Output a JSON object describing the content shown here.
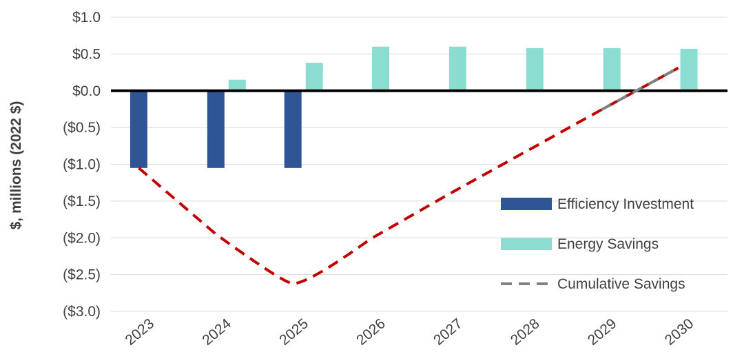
{
  "chart_data": {
    "type": "bar",
    "categories": [
      "2023",
      "2024",
      "2025",
      "2026",
      "2027",
      "2028",
      "2029",
      "2030"
    ],
    "ylabel": "$, millions (2022 $)",
    "ylim": [
      -3.0,
      1.0
    ],
    "yticks": [
      {
        "value": 1.0,
        "label": "$1.0"
      },
      {
        "value": 0.5,
        "label": "$0.5"
      },
      {
        "value": 0.0,
        "label": "$0.0"
      },
      {
        "value": -0.5,
        "label": "($0.5)"
      },
      {
        "value": -1.0,
        "label": "($1.0)"
      },
      {
        "value": -1.5,
        "label": "($1.5)"
      },
      {
        "value": -2.0,
        "label": "($2.0)"
      },
      {
        "value": -2.5,
        "label": "($2.5)"
      },
      {
        "value": -3.0,
        "label": "($3.0)"
      }
    ],
    "grid": true,
    "legend_position": "bottom-right",
    "series": [
      {
        "name": "Efficiency Investment",
        "kind": "bar",
        "color": "#2F5597",
        "values": [
          -1.05,
          -1.05,
          -1.05,
          0,
          0,
          0,
          0,
          0
        ]
      },
      {
        "name": "Energy Savings",
        "kind": "bar",
        "color": "#8BDDD2",
        "values": [
          0,
          0.15,
          0.38,
          0.6,
          0.6,
          0.58,
          0.58,
          0.57
        ]
      },
      {
        "name": "Cumulative Savings",
        "kind": "line",
        "line_style": "dashed",
        "color": "#C00000",
        "legend_color": "#808080",
        "values": [
          -1.05,
          -1.95,
          -2.62,
          -2.02,
          -1.42,
          -0.84,
          -0.26,
          0.31
        ]
      }
    ]
  }
}
